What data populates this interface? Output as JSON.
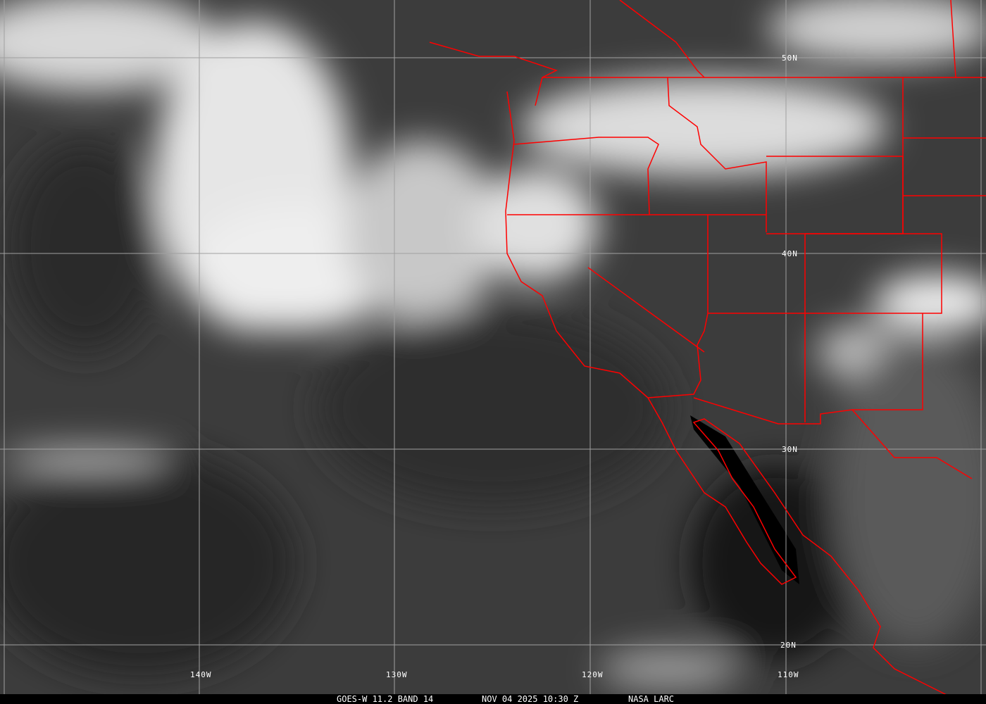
{
  "caption": {
    "satellite": "GOES-W 11.2 BAND 14",
    "datetime": "NOV 04 2025 10:30 Z",
    "source": "NASA LARC"
  },
  "lat_labels": [
    "50N",
    "40N",
    "30N",
    "20N"
  ],
  "lon_labels": [
    "140W",
    "130W",
    "120W",
    "110W"
  ],
  "colors": {
    "borders": "#ff0000",
    "grid": "#a0a0a0",
    "caption_bg": "#000000"
  }
}
